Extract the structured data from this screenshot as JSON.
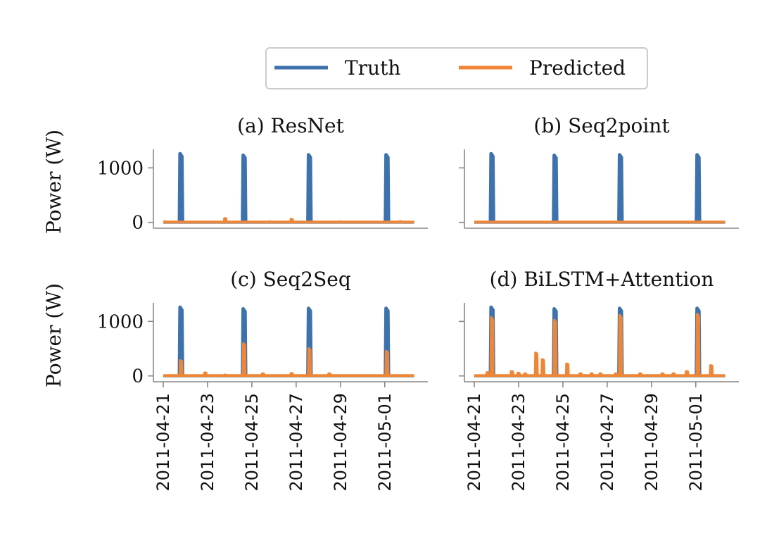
{
  "chart_data": {
    "type": "line",
    "legend": {
      "placement": "top-center",
      "entries": [
        {
          "name": "Truth",
          "color": "#3d72ad"
        },
        {
          "name": "Predicted",
          "color": "#ef8636"
        }
      ]
    },
    "x_ticks": [
      "2011-04-21",
      "2011-04-23",
      "2011-04-25",
      "2011-04-27",
      "2011-04-29",
      "2011-05-01"
    ],
    "xlim": [
      "2011-04-21",
      "2011-05-02T12:00"
    ],
    "ylim": [
      -30,
      1340
    ],
    "y_ticks": [
      0,
      1000
    ],
    "ylabel": "Power (W)",
    "truth": {
      "name": "Truth",
      "spikes": [
        {
          "t": "2011-04-21T19:12",
          "v": 1260
        },
        {
          "t": "2011-04-24T15:36",
          "v": 1230
        },
        {
          "t": "2011-04-27T14:24",
          "v": 1240
        },
        {
          "t": "2011-05-01T02:24",
          "v": 1240
        }
      ],
      "baseline": 0
    },
    "panels": [
      {
        "title": "(a) ResNet",
        "ylabel": "Power (W)",
        "truth_visible": true,
        "predicted": [
          {
            "t": "2011-04-21T02:24",
            "v": 10
          },
          {
            "t": "2011-04-23T19:12",
            "v": 70
          },
          {
            "t": "2011-04-25T19:12",
            "v": 10
          },
          {
            "t": "2011-04-26T19:12",
            "v": 55
          },
          {
            "t": "2011-04-29T00:00",
            "v": 10
          },
          {
            "t": "2011-05-01T16:48",
            "v": 15
          }
        ]
      },
      {
        "title": "(b) Seq2point",
        "ylabel": "",
        "truth_visible": true,
        "predicted": []
      },
      {
        "title": "(c) Seq2Seq",
        "ylabel": "Power (W)",
        "truth_visible": true,
        "predicted": [
          {
            "t": "2011-04-21T19:12",
            "v": 280
          },
          {
            "t": "2011-04-22T21:36",
            "v": 55
          },
          {
            "t": "2011-04-23T19:12",
            "v": 15
          },
          {
            "t": "2011-04-24T15:36",
            "v": 590
          },
          {
            "t": "2011-04-25T12:00",
            "v": 40
          },
          {
            "t": "2011-04-26T19:12",
            "v": 45
          },
          {
            "t": "2011-04-27T14:24",
            "v": 500
          },
          {
            "t": "2011-04-28T12:00",
            "v": 40
          },
          {
            "t": "2011-05-01T02:24",
            "v": 450
          }
        ]
      },
      {
        "title": "(d) BiLSTM+Attention",
        "ylabel": "",
        "truth_visible": true,
        "predicted": [
          {
            "t": "2011-04-21T14:24",
            "v": 60
          },
          {
            "t": "2011-04-21T19:12",
            "v": 1070
          },
          {
            "t": "2011-04-22T16:48",
            "v": 80
          },
          {
            "t": "2011-04-23T00:00",
            "v": 50
          },
          {
            "t": "2011-04-23T07:12",
            "v": 40
          },
          {
            "t": "2011-04-23T19:12",
            "v": 420
          },
          {
            "t": "2011-04-24T02:24",
            "v": 300
          },
          {
            "t": "2011-04-24T15:36",
            "v": 1020
          },
          {
            "t": "2011-04-25T04:48",
            "v": 220
          },
          {
            "t": "2011-04-25T19:12",
            "v": 40
          },
          {
            "t": "2011-04-26T07:12",
            "v": 40
          },
          {
            "t": "2011-04-26T16:48",
            "v": 40
          },
          {
            "t": "2011-04-27T09:36",
            "v": 40
          },
          {
            "t": "2011-04-27T14:24",
            "v": 1110
          },
          {
            "t": "2011-04-28T12:00",
            "v": 40
          },
          {
            "t": "2011-04-29T12:00",
            "v": 40
          },
          {
            "t": "2011-04-30T00:00",
            "v": 40
          },
          {
            "t": "2011-04-30T14:24",
            "v": 80
          },
          {
            "t": "2011-05-01T02:24",
            "v": 1130
          },
          {
            "t": "2011-05-01T16:48",
            "v": 190
          }
        ]
      }
    ]
  }
}
